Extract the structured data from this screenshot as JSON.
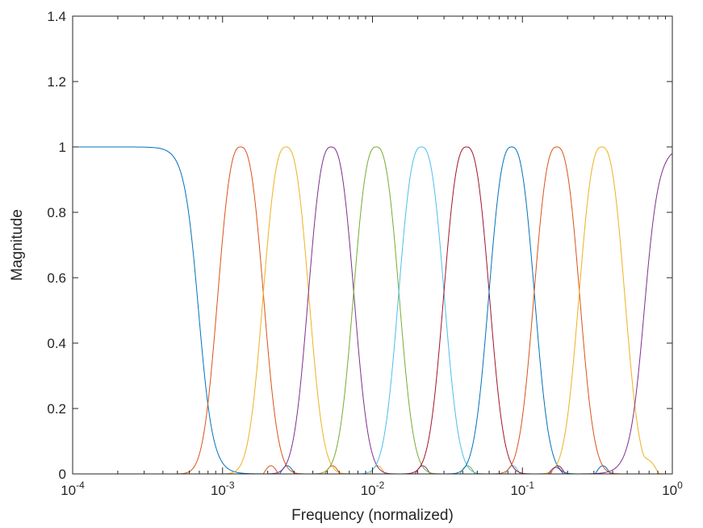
{
  "chart_data": {
    "type": "line",
    "title": "",
    "xlabel": "Frequency (normalized)",
    "ylabel": "Magnitude",
    "xscale": "log",
    "xlim": [
      0.0001,
      1
    ],
    "ylim": [
      0,
      1.4
    ],
    "grid": false,
    "legend": "none",
    "x_ticks": [
      {
        "base": "10",
        "exp": "-4",
        "value": 0.0001
      },
      {
        "base": "10",
        "exp": "-3",
        "value": 0.001
      },
      {
        "base": "10",
        "exp": "-2",
        "value": 0.01
      },
      {
        "base": "10",
        "exp": "-1",
        "value": 0.1
      },
      {
        "base": "10",
        "exp": "0",
        "value": 1
      }
    ],
    "y_ticks": [
      "0",
      "0.2",
      "0.4",
      "0.6",
      "0.8",
      "1",
      "1.2",
      "1.4"
    ],
    "series": [
      {
        "color": "#0072bd",
        "kind": "lowpass",
        "center": 0.00066,
        "edge": 0.00066,
        "sidelobe": [
          0.0027,
          0.025
        ]
      },
      {
        "color": "#d95319",
        "kind": "band",
        "center": 0.00132,
        "edge": 0.00066,
        "sidelobe": [
          0.0054,
          0.025
        ]
      },
      {
        "color": "#edb120",
        "kind": "band",
        "center": 0.00265,
        "edge": 0.00066,
        "sidelobe": [
          0.0108,
          0.025
        ]
      },
      {
        "color": "#7e2f8e",
        "kind": "band",
        "center": 0.0053,
        "edge": 0.00066,
        "sidelobe": [
          0.0216,
          0.025
        ]
      },
      {
        "color": "#77ac30",
        "kind": "band",
        "center": 0.0106,
        "edge": 0.00066,
        "sidelobe": [
          0.043,
          0.025
        ]
      },
      {
        "color": "#4dbeee",
        "kind": "band",
        "center": 0.0212,
        "edge": 0.00066,
        "sidelobe": [
          0.086,
          0.025
        ]
      },
      {
        "color": "#a2142f",
        "kind": "band",
        "center": 0.0424,
        "edge": 0.00066,
        "sidelobe": [
          0.172,
          0.025
        ]
      },
      {
        "color": "#0072bd",
        "kind": "band",
        "center": 0.0848,
        "edge": 0.00066,
        "sidelobe": [
          0.344,
          0.025
        ]
      },
      {
        "color": "#d95319",
        "kind": "band",
        "center": 0.1696,
        "edge": 0.00066,
        "sidelobe": [
          0.0021,
          0.025
        ]
      },
      {
        "color": "#edb120",
        "kind": "band",
        "center": 0.339,
        "edge": 0.00066,
        "sidelobe": [
          0.72,
          0.025
        ]
      },
      {
        "color": "#7e2f8e",
        "kind": "highpass",
        "center": 0.68,
        "edge": 0.68,
        "sidelobe": [
          0.167,
          0.02
        ]
      }
    ]
  }
}
